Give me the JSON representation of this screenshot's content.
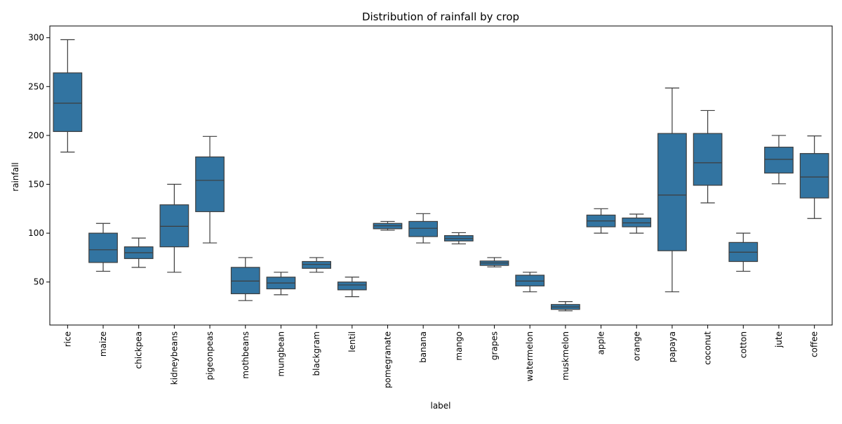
{
  "chart_data": {
    "type": "box",
    "title": "Distribution of rainfall by crop",
    "xlabel": "label",
    "ylabel": "rainfall",
    "ylim": [
      6,
      312
    ],
    "yticks": [
      50,
      100,
      150,
      200,
      250,
      300
    ],
    "grid": false,
    "box_color": "#3274a1",
    "line_color": "#3d3d3d",
    "categories": [
      "rice",
      "maize",
      "chickpea",
      "kidneybeans",
      "pigeonpeas",
      "mothbeans",
      "mungbean",
      "blackgram",
      "lentil",
      "pomegranate",
      "banana",
      "mango",
      "grapes",
      "watermelon",
      "muskmelon",
      "apple",
      "orange",
      "papaya",
      "coconut",
      "cotton",
      "jute",
      "coffee"
    ],
    "boxes": [
      {
        "whislo": 183,
        "q1": 204,
        "med": 233,
        "q3": 264,
        "whishi": 298
      },
      {
        "whislo": 61,
        "q1": 70,
        "med": 83,
        "q3": 100,
        "whishi": 110
      },
      {
        "whislo": 65,
        "q1": 74,
        "med": 80,
        "q3": 86,
        "whishi": 95
      },
      {
        "whislo": 60,
        "q1": 86,
        "med": 107,
        "q3": 129,
        "whishi": 150
      },
      {
        "whislo": 90,
        "q1": 122,
        "med": 154,
        "q3": 178,
        "whishi": 199
      },
      {
        "whislo": 31,
        "q1": 38,
        "med": 51,
        "q3": 65,
        "whishi": 75
      },
      {
        "whislo": 37,
        "q1": 43,
        "med": 49,
        "q3": 55,
        "whishi": 60
      },
      {
        "whislo": 60,
        "q1": 64,
        "med": 68,
        "q3": 71,
        "whishi": 75
      },
      {
        "whislo": 35,
        "q1": 42,
        "med": 47,
        "q3": 50,
        "whishi": 55
      },
      {
        "whislo": 103,
        "q1": 104.5,
        "med": 107.5,
        "q3": 110,
        "whishi": 112
      },
      {
        "whislo": 90,
        "q1": 96.5,
        "med": 105,
        "q3": 112,
        "whishi": 120
      },
      {
        "whislo": 89,
        "q1": 92,
        "med": 94.5,
        "q3": 97.5,
        "whishi": 100.5
      },
      {
        "whislo": 65.5,
        "q1": 67,
        "med": 69.5,
        "q3": 71.5,
        "whishi": 75
      },
      {
        "whislo": 40,
        "q1": 46,
        "med": 51,
        "q3": 57,
        "whishi": 60
      },
      {
        "whislo": 20.5,
        "q1": 22,
        "med": 24.5,
        "q3": 27,
        "whishi": 30
      },
      {
        "whislo": 100,
        "q1": 106.5,
        "med": 112.5,
        "q3": 118.5,
        "whishi": 125
      },
      {
        "whislo": 100,
        "q1": 106.5,
        "med": 110.5,
        "q3": 115.5,
        "whishi": 119.5
      },
      {
        "whislo": 40,
        "q1": 82,
        "med": 139,
        "q3": 202,
        "whishi": 248.5
      },
      {
        "whislo": 131,
        "q1": 149,
        "med": 172,
        "q3": 202,
        "whishi": 225.5
      },
      {
        "whislo": 61,
        "q1": 71,
        "med": 80.5,
        "q3": 90.5,
        "whishi": 100
      },
      {
        "whislo": 150.5,
        "q1": 161.5,
        "med": 175.5,
        "q3": 188,
        "whishi": 200
      },
      {
        "whislo": 115,
        "q1": 136,
        "med": 157.5,
        "q3": 181.5,
        "whishi": 199.5
      }
    ]
  }
}
